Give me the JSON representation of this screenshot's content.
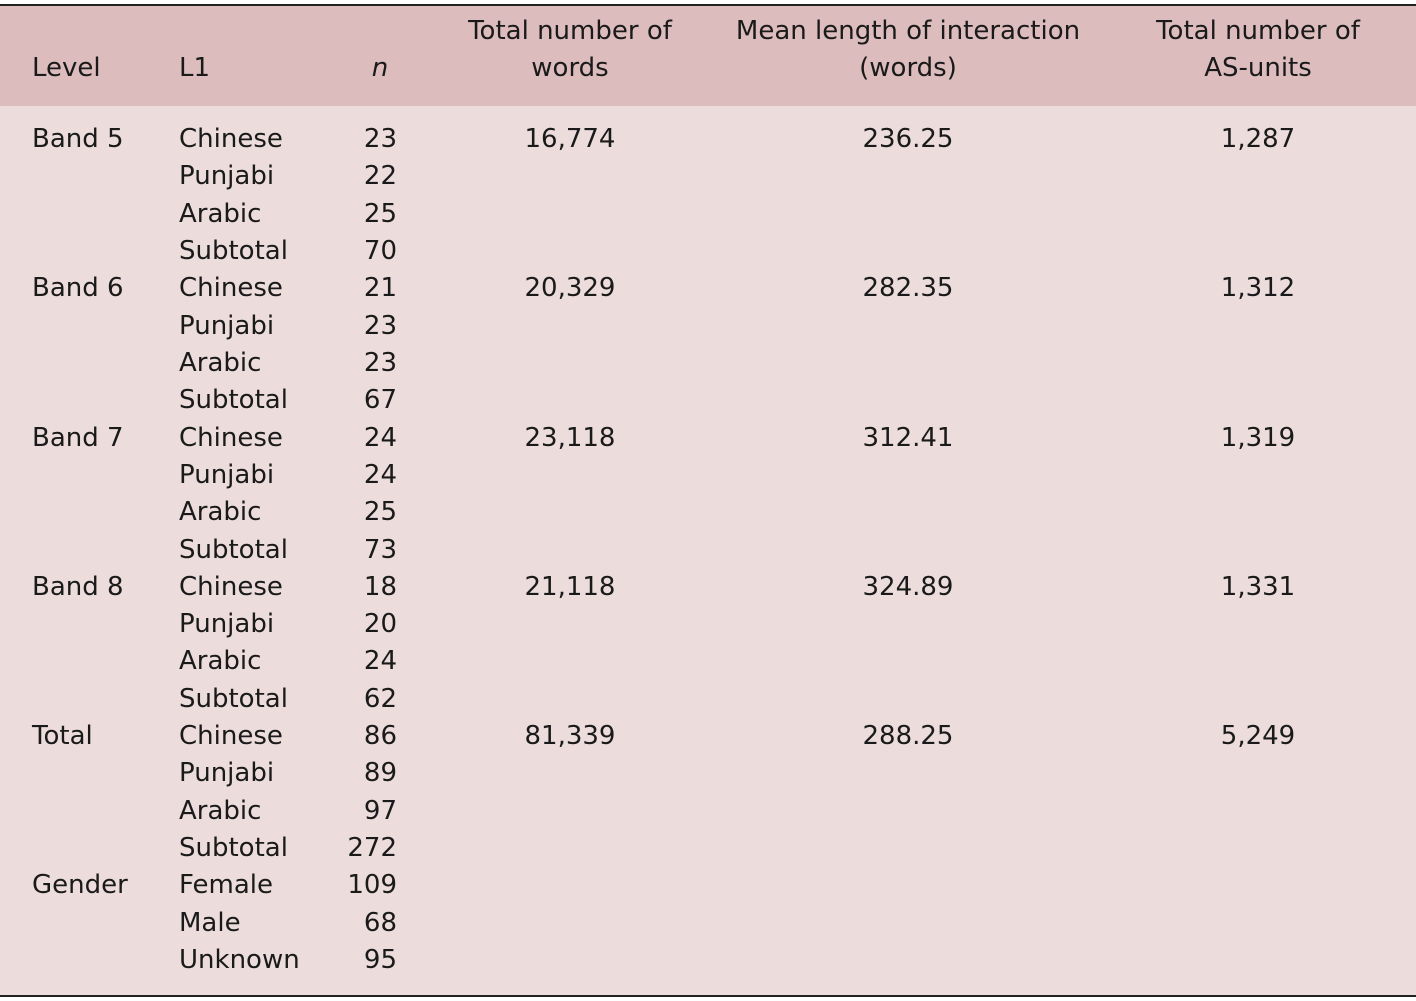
{
  "table": {
    "headers": [
      "Level",
      "L1",
      "n",
      "Total number of words",
      "Mean length of interaction (words)",
      "Total number of AS-units"
    ],
    "groups": [
      {
        "level": "Band 5",
        "words": "16,774",
        "mean": "236.25",
        "units": "1,287",
        "members": [
          {
            "l1": "Chinese",
            "n": 23
          },
          {
            "l1": "Punjabi",
            "n": 22
          },
          {
            "l1": "Arabic",
            "n": 25
          },
          {
            "l1": "Subtotal",
            "n": 70
          }
        ]
      },
      {
        "level": "Band 6",
        "words": "20,329",
        "mean": "282.35",
        "units": "1,312",
        "members": [
          {
            "l1": "Chinese",
            "n": 21
          },
          {
            "l1": "Punjabi",
            "n": 23
          },
          {
            "l1": "Arabic",
            "n": 23
          },
          {
            "l1": "Subtotal",
            "n": 67
          }
        ]
      },
      {
        "level": "Band 7",
        "words": "23,118",
        "mean": "312.41",
        "units": "1,319",
        "members": [
          {
            "l1": "Chinese",
            "n": 24
          },
          {
            "l1": "Punjabi",
            "n": 24
          },
          {
            "l1": "Arabic",
            "n": 25
          },
          {
            "l1": "Subtotal",
            "n": 73
          }
        ]
      },
      {
        "level": "Band 8",
        "words": "21,118",
        "mean": "324.89",
        "units": "1,331",
        "members": [
          {
            "l1": "Chinese",
            "n": 18
          },
          {
            "l1": "Punjabi",
            "n": 20
          },
          {
            "l1": "Arabic",
            "n": 24
          },
          {
            "l1": "Subtotal",
            "n": 62
          }
        ]
      },
      {
        "level": "Total",
        "words": "81,339",
        "mean": "288.25",
        "units": "5,249",
        "members": [
          {
            "l1": "Chinese",
            "n": 86
          },
          {
            "l1": "Punjabi",
            "n": 89
          },
          {
            "l1": "Arabic",
            "n": 97
          },
          {
            "l1": "Subtotal",
            "n": 272
          }
        ]
      },
      {
        "level": "Gender",
        "members": [
          {
            "l1": "Female",
            "n": 109
          },
          {
            "l1": "Male",
            "n": 68
          },
          {
            "l1": "Unknown",
            "n": 95
          }
        ]
      }
    ]
  }
}
